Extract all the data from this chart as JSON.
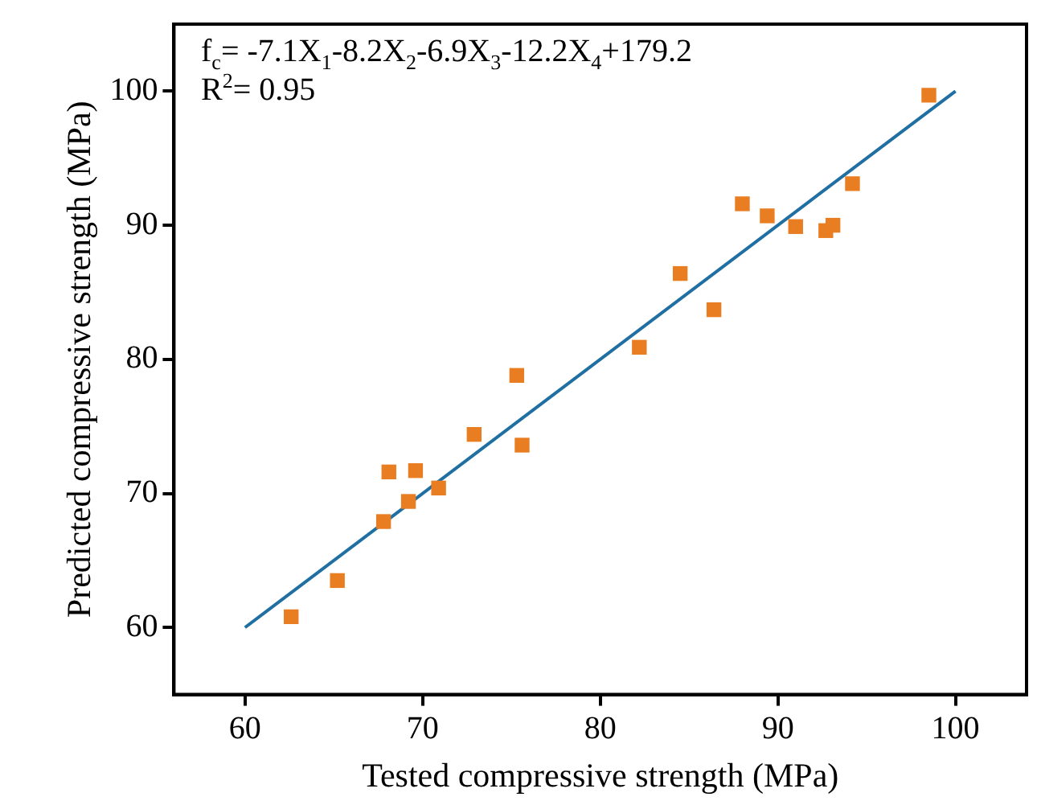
{
  "chart_data": {
    "type": "scatter",
    "xlabel": "Tested compressive strength (MPa)",
    "ylabel": "Predicted compressive strength (MPa)",
    "annotations": [
      "f$_{c}$= -7.1X$_{1}$-8.2X$_{2}$-6.9X$_{3}$-12.2X$_{4}$+179.2",
      "R$^{2}$= 0.95"
    ],
    "series": [
      {
        "color": "#e87d22",
        "marker": "square",
        "x": [
          62.6,
          65.2,
          67.8,
          68.1,
          69.2,
          69.6,
          70.9,
          72.9,
          75.6,
          75.3,
          82.2,
          84.5,
          86.4,
          88.0,
          89.4,
          91.0,
          92.7,
          93.1,
          94.2,
          98.5
        ],
        "values": [
          60.8,
          63.5,
          67.9,
          71.6,
          69.4,
          71.7,
          70.4,
          74.4,
          73.6,
          78.8,
          80.9,
          86.4,
          83.7,
          91.6,
          90.7,
          89.9,
          89.6,
          90.0,
          93.1,
          99.7
        ]
      },
      {
        "type": "line",
        "color": "#1f6fa3",
        "marker": "none",
        "x": [
          60,
          100
        ],
        "values": [
          60,
          100
        ]
      }
    ],
    "xlim": [
      56,
      104
    ],
    "xticks": [
      60,
      70,
      80,
      90,
      100
    ],
    "ylim": [
      55,
      105
    ],
    "yticks": [
      60,
      70,
      80,
      90,
      100
    ],
    "grid": false,
    "legend": false
  }
}
